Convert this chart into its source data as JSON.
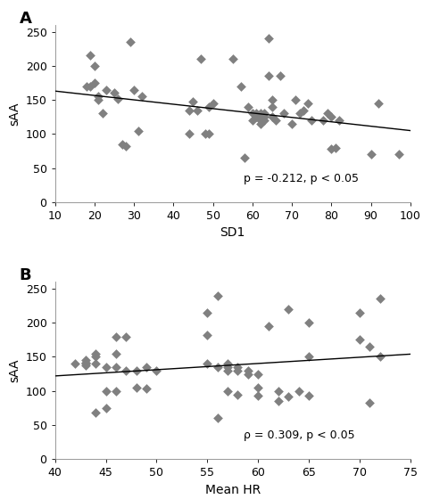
{
  "panel_A": {
    "label": "A",
    "xlabel": "SD1",
    "ylabel": "sAA",
    "xlim": [
      10,
      100
    ],
    "ylim": [
      0,
      260
    ],
    "xticks": [
      10,
      20,
      30,
      40,
      50,
      60,
      70,
      80,
      90,
      100
    ],
    "yticks": [
      0,
      50,
      100,
      150,
      200,
      250
    ],
    "annotation": "p = -0.212, p < 0.05",
    "scatter_x": [
      18,
      19,
      19,
      20,
      20,
      21,
      21,
      22,
      23,
      25,
      26,
      27,
      28,
      29,
      30,
      31,
      32,
      44,
      44,
      45,
      46,
      47,
      48,
      49,
      49,
      50,
      55,
      57,
      58,
      59,
      60,
      60,
      61,
      61,
      62,
      62,
      62,
      63,
      63,
      63,
      64,
      64,
      65,
      65,
      65,
      66,
      67,
      68,
      70,
      71,
      72,
      73,
      74,
      75,
      78,
      79,
      80,
      80,
      81,
      82,
      90,
      92,
      97
    ],
    "scatter_y": [
      170,
      215,
      170,
      175,
      200,
      155,
      150,
      130,
      165,
      160,
      152,
      85,
      82,
      235,
      165,
      105,
      155,
      135,
      100,
      148,
      135,
      210,
      100,
      140,
      100,
      145,
      210,
      170,
      65,
      140,
      130,
      120,
      130,
      125,
      130,
      115,
      120,
      130,
      125,
      120,
      240,
      185,
      150,
      140,
      125,
      120,
      185,
      130,
      115,
      150,
      130,
      135,
      145,
      120,
      120,
      130,
      78,
      125,
      80,
      120,
      70,
      145,
      70
    ],
    "line_x": [
      10,
      100
    ],
    "line_y": [
      163,
      105
    ]
  },
  "panel_B": {
    "label": "B",
    "xlabel": "Mean HR",
    "ylabel": "sAA",
    "xlim": [
      40,
      75
    ],
    "ylim": [
      0,
      260
    ],
    "xticks": [
      40,
      45,
      50,
      55,
      60,
      65,
      70,
      75
    ],
    "yticks": [
      0,
      50,
      100,
      150,
      200,
      250
    ],
    "annotation": "ρ = 0.309, p < 0.05",
    "scatter_x": [
      42,
      43,
      43,
      43,
      43,
      44,
      44,
      44,
      44,
      45,
      45,
      45,
      46,
      46,
      46,
      46,
      47,
      47,
      48,
      48,
      49,
      49,
      50,
      55,
      55,
      55,
      56,
      56,
      56,
      57,
      57,
      57,
      57,
      58,
      58,
      58,
      59,
      59,
      60,
      60,
      60,
      61,
      62,
      62,
      63,
      63,
      64,
      65,
      65,
      65,
      70,
      70,
      71,
      71,
      72,
      72
    ],
    "scatter_y": [
      140,
      142,
      140,
      137,
      145,
      150,
      155,
      140,
      68,
      75,
      135,
      100,
      180,
      155,
      135,
      100,
      180,
      130,
      130,
      105,
      135,
      103,
      130,
      215,
      182,
      140,
      240,
      135,
      60,
      130,
      135,
      140,
      100,
      95,
      130,
      135,
      130,
      125,
      125,
      105,
      93,
      195,
      85,
      100,
      220,
      92,
      100,
      200,
      150,
      93,
      175,
      215,
      82,
      165,
      235,
      150
    ],
    "line_x": [
      40,
      75
    ],
    "line_y": [
      122,
      154
    ]
  },
  "marker_color": "#808080",
  "marker_size": 30,
  "line_color": "#000000",
  "bg_color": "#ffffff",
  "font_size_label": 10,
  "font_size_tick": 9,
  "font_size_annot": 9,
  "font_size_panel_label": 13
}
